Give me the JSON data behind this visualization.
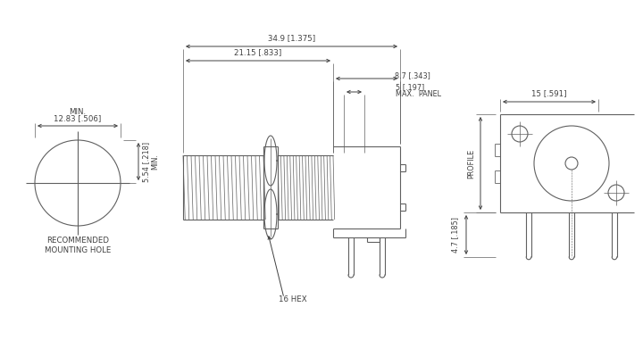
{
  "bg_color": "#ffffff",
  "line_color": "#606060",
  "dim_color": "#404040",
  "font_size": 6.2,
  "annotations": {
    "dim1": "34.9 [1.375]",
    "dim2": "21.15 [.833]",
    "dim3": "8.7 [.343]",
    "dim4": "5 [.197]",
    "dim5": "MAX.  PANEL",
    "dim6": "16 HEX",
    "dim7": "12.83 [.506]",
    "dim8": "MIN.",
    "dim9": "5.54 [.218]",
    "dim10": "MIN.",
    "dim11": "RECOMMENDED\nMOUNTING HOLE",
    "dim12": "15 [.591]",
    "dim13": "4.7 [.185]",
    "dim14": "PROFILE"
  }
}
